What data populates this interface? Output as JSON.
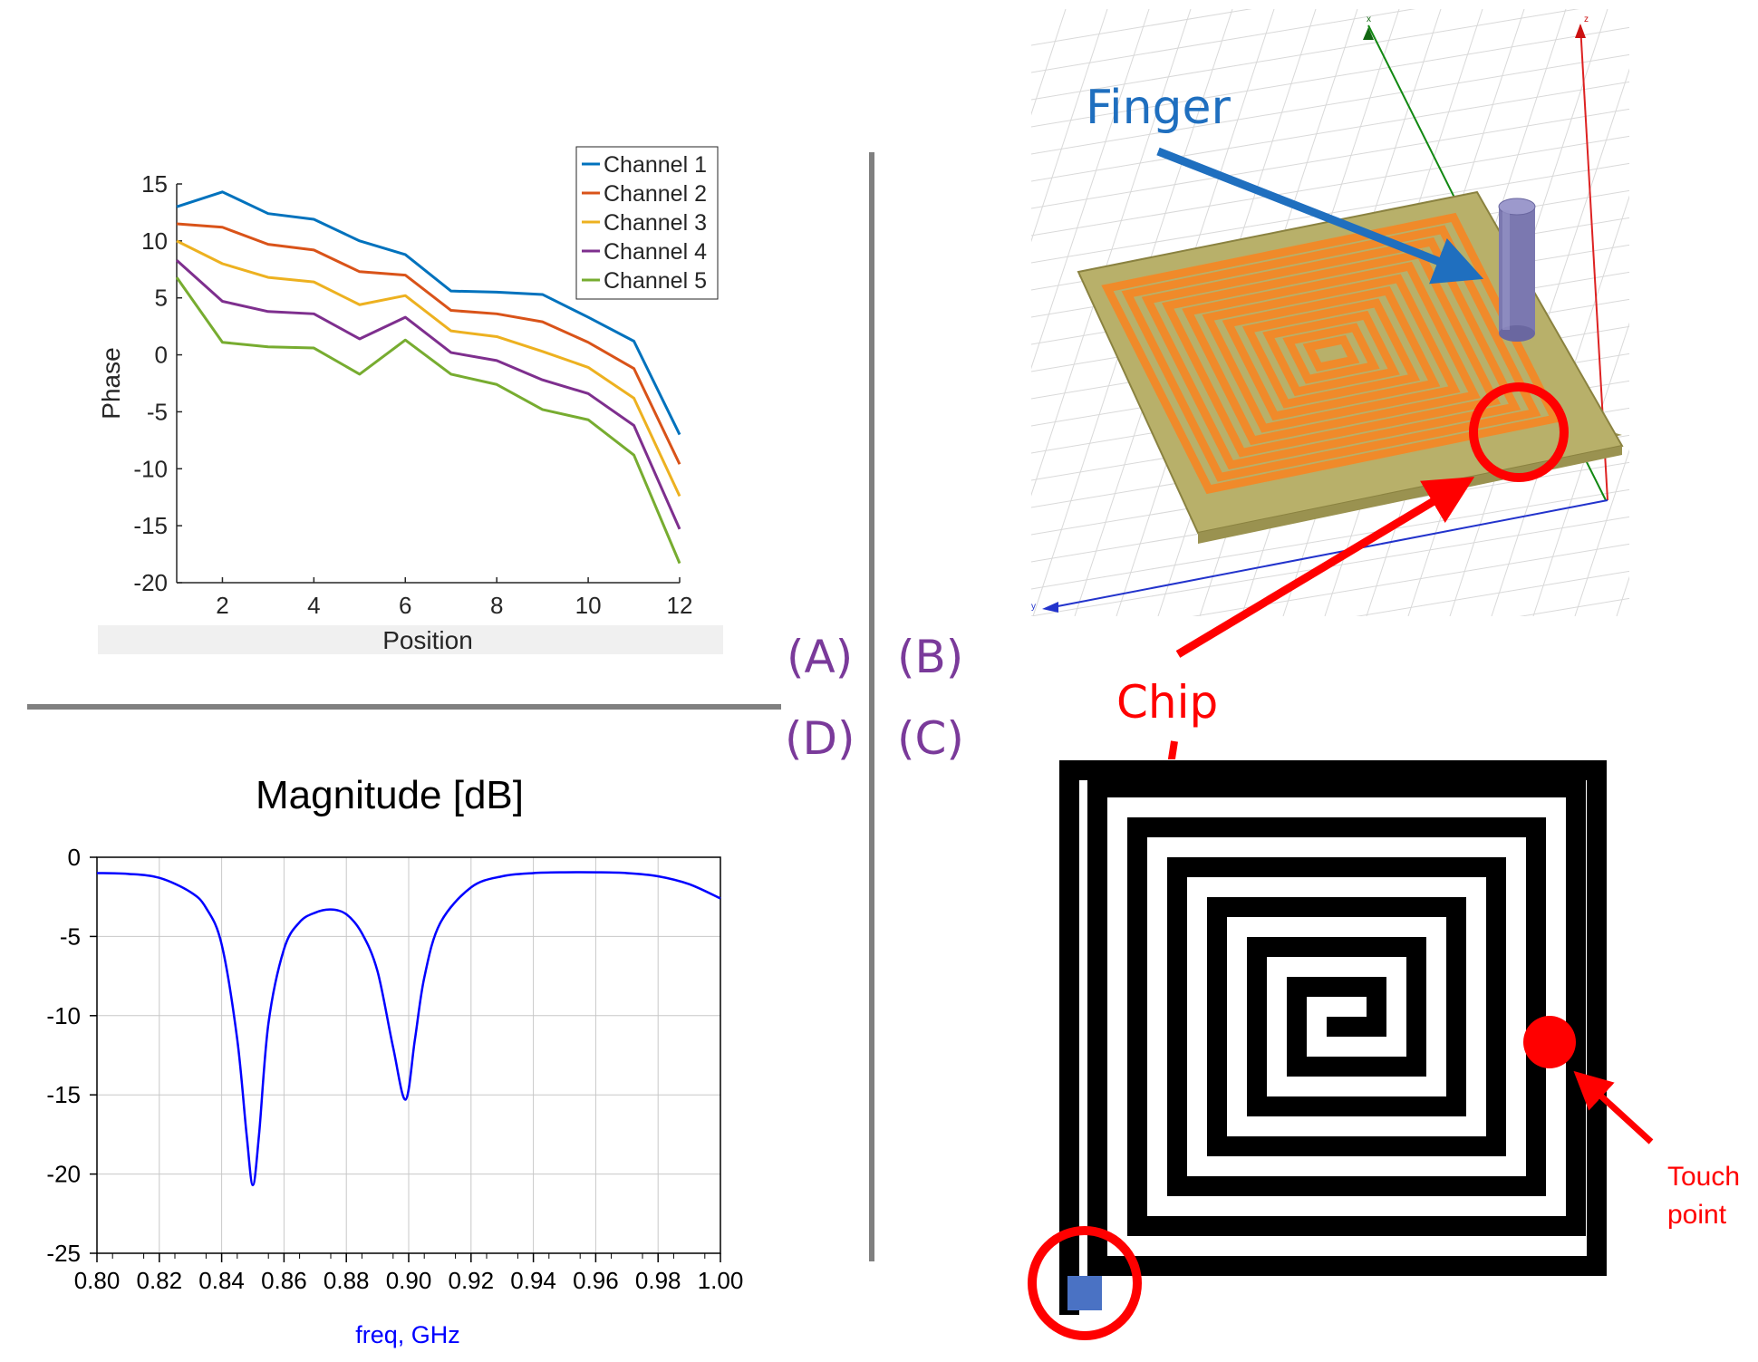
{
  "panel_labels": {
    "a": "(A)",
    "b": "(B)",
    "c": "(C)",
    "d": "(D)"
  },
  "annotations": {
    "finger": "Finger",
    "chip": "Chip",
    "touch_point_line1": "Touch",
    "touch_point_line2": "point"
  },
  "axis_glyphs": {
    "x": "x",
    "y": "y",
    "z": "z"
  },
  "colors": {
    "panel_label": "#7a3a9a",
    "finger_label": "#1f6fbf",
    "chip_label": "#ff0000",
    "substrate": "#b8b06a",
    "coil_trace": "#f08a2a",
    "finger_cylinder": "#7b78b0",
    "touch_marker": "#ff0000",
    "chip_square": "#4a72c4"
  },
  "chart_data": [
    {
      "type": "line",
      "panel": "A",
      "xlabel": "Position",
      "ylabel": "Phase",
      "xlim": [
        1,
        12
      ],
      "ylim": [
        -20,
        15
      ],
      "xticks": [
        "2",
        "4",
        "6",
        "8",
        "10",
        "12"
      ],
      "yticks": [
        "15",
        "10",
        "5",
        "0",
        "-5",
        "-10",
        "-15",
        "-20"
      ],
      "legend_position": "top-right",
      "x": [
        1,
        2,
        3,
        4,
        5,
        6,
        7,
        8,
        9,
        10,
        11,
        12
      ],
      "series": [
        {
          "name": "Channel 1",
          "color": "#0072bd",
          "values": [
            13,
            14.3,
            12.4,
            11.9,
            10,
            8.8,
            5.6,
            5.5,
            5.3,
            3.3,
            1.2,
            -7
          ]
        },
        {
          "name": "Channel 2",
          "color": "#d95319",
          "values": [
            11.5,
            11.2,
            9.7,
            9.2,
            7.3,
            7,
            3.9,
            3.6,
            2.9,
            1.1,
            -1.2,
            -9.6
          ]
        },
        {
          "name": "Channel 3",
          "color": "#edb120",
          "values": [
            10,
            8,
            6.8,
            6.4,
            4.4,
            5.2,
            2.1,
            1.6,
            0.3,
            -1.1,
            -3.8,
            -12.4
          ]
        },
        {
          "name": "Channel 4",
          "color": "#7e2f8e",
          "values": [
            8.3,
            4.7,
            3.8,
            3.6,
            1.4,
            3.3,
            0.2,
            -0.5,
            -2.2,
            -3.4,
            -6.2,
            -15.3
          ]
        },
        {
          "name": "Channel 5",
          "color": "#77ac30",
          "values": [
            6.8,
            1.1,
            0.7,
            0.6,
            -1.7,
            1.3,
            -1.7,
            -2.6,
            -4.8,
            -5.7,
            -8.8,
            -18.3
          ]
        }
      ]
    },
    {
      "type": "line",
      "panel": "D",
      "title": "Magnitude [dB]",
      "xlabel": "freq, GHz",
      "ylabel": "",
      "xlim": [
        0.8,
        1.0
      ],
      "ylim": [
        -25,
        0
      ],
      "xticks": [
        "0.80",
        "0.82",
        "0.84",
        "0.86",
        "0.88",
        "0.90",
        "0.92",
        "0.94",
        "0.96",
        "0.98",
        "1.00"
      ],
      "yticks": [
        "0",
        "-5",
        "-10",
        "-15",
        "-20",
        "-25"
      ],
      "grid": true,
      "series": [
        {
          "color": "#0000ff",
          "x": [
            0.8,
            0.81,
            0.82,
            0.83,
            0.835,
            0.84,
            0.845,
            0.848,
            0.85,
            0.852,
            0.855,
            0.86,
            0.865,
            0.87,
            0.875,
            0.88,
            0.885,
            0.89,
            0.895,
            0.899,
            0.902,
            0.905,
            0.91,
            0.92,
            0.93,
            0.94,
            0.95,
            0.96,
            0.97,
            0.98,
            0.99,
            1.0
          ],
          "values": [
            -1.0,
            -1.05,
            -1.3,
            -2.2,
            -3.2,
            -5.5,
            -11.5,
            -17.5,
            -20.7,
            -17.5,
            -10.5,
            -5.8,
            -4.1,
            -3.5,
            -3.3,
            -3.6,
            -4.8,
            -7.2,
            -12.0,
            -15.3,
            -11.5,
            -7.6,
            -4.2,
            -1.9,
            -1.2,
            -1.0,
            -0.95,
            -0.95,
            -1.0,
            -1.2,
            -1.7,
            -2.6
          ]
        }
      ]
    }
  ]
}
